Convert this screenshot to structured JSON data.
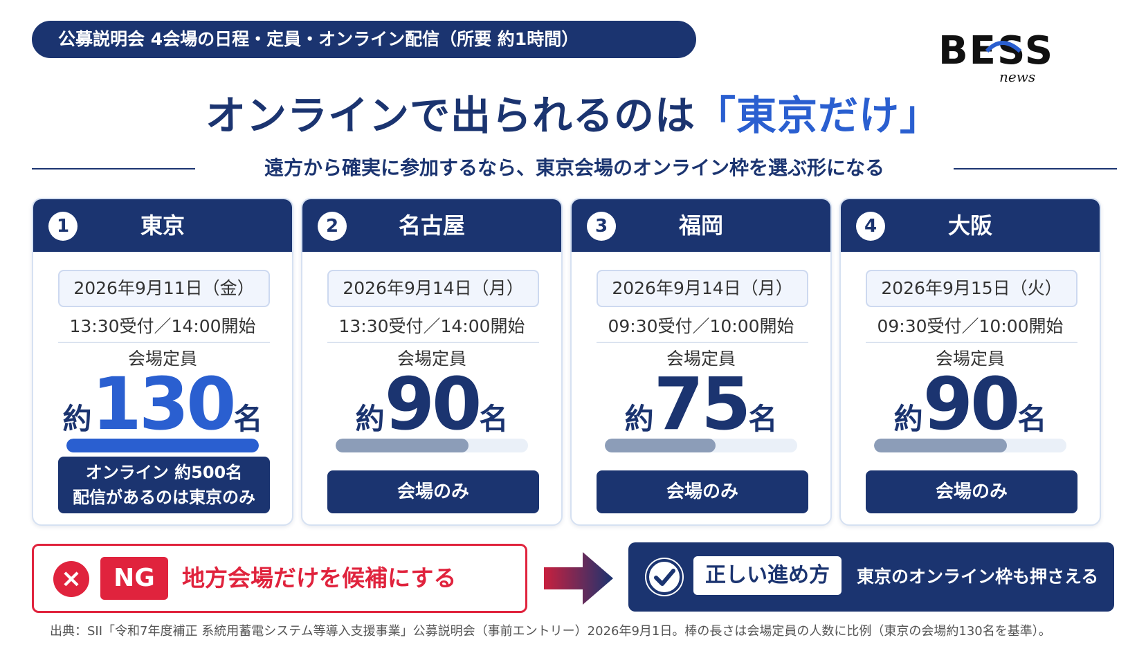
{
  "header": {
    "pill_text": "公募説明会 4会場の日程・定員・オンライン配信（所要 約1時間）",
    "logo_text": "BESS",
    "logo_sub": "news"
  },
  "headline": {
    "main": "オンラインで出られるのは",
    "highlight": "「東京だけ」",
    "sub": "遠方から確実に参加するなら、東京会場のオンライン枠を選ぶ形になる"
  },
  "colors": {
    "navy": "#1b3470",
    "accent_blue": "#2a5fd0",
    "ng_red": "#e0233d",
    "bar_gray": "#8c9db8"
  },
  "venues": [
    {
      "num": "1",
      "city": "東京",
      "date": "2026年9月11日（金）",
      "time": "13:30受付／14:00開始",
      "cap_label": "会場定員",
      "prefix": "約",
      "capacity": "130",
      "suffix": "名",
      "capacity_value": 130,
      "note_line1": "オンライン 約500名",
      "note_line2": "配信があるのは東京のみ"
    },
    {
      "num": "2",
      "city": "名古屋",
      "date": "2026年9月14日（月）",
      "time": "13:30受付／14:00開始",
      "cap_label": "会場定員",
      "prefix": "約",
      "capacity": "90",
      "suffix": "名",
      "capacity_value": 90,
      "button": "会場のみ"
    },
    {
      "num": "3",
      "city": "福岡",
      "date": "2026年9月14日（月）",
      "time": "09:30受付／10:00開始",
      "cap_label": "会場定員",
      "prefix": "約",
      "capacity": "75",
      "suffix": "名",
      "capacity_value": 75,
      "button": "会場のみ"
    },
    {
      "num": "4",
      "city": "大阪",
      "date": "2026年9月15日（火）",
      "time": "09:30受付／10:00開始",
      "cap_label": "会場定員",
      "prefix": "約",
      "capacity": "90",
      "suffix": "名",
      "capacity_value": 90,
      "button": "会場のみ"
    }
  ],
  "ng": {
    "mark": "×",
    "tag": "NG",
    "message": "地方会場だけを候補にする",
    "icon": "x-circle-icon"
  },
  "ok": {
    "tag": "正しい進め方",
    "message": "東京のオンライン枠も押さえる",
    "icon": "check-circle-icon"
  },
  "source": "出典：SII「令和7年度補正 系統用蓄電システム等導入支援事業」公募説明会（事前エントリー）2026年9月1日。棒の長さは会場定員の人数に比例（東京の会場約130名を基準）。"
}
